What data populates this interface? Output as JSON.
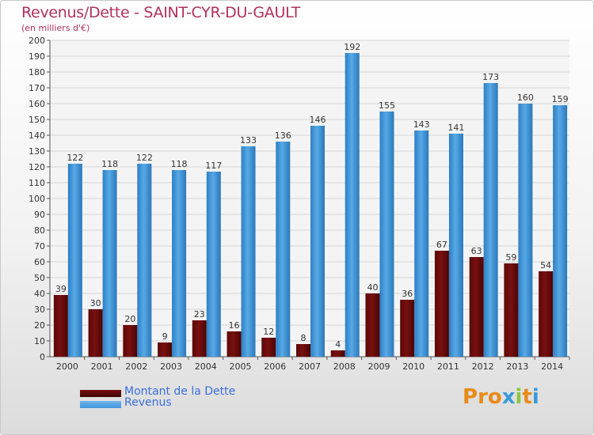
{
  "header": {
    "title": "Revenus/Dette - SAINT-CYR-DU-GAULT",
    "subtitle": "(en milliers d'€)"
  },
  "colors": {
    "dette": "#7a1010",
    "revenus": "#3f96da",
    "axis_text": "#333333",
    "legend_text": "#3a6fd8",
    "title_text": "#b03060"
  },
  "legend": {
    "dette_label": "Montant de la Dette",
    "revenus_label": "Revenus"
  },
  "logo": {
    "text": "Proxiti"
  },
  "chart_data": {
    "type": "bar",
    "title": "Revenus/Dette - SAINT-CYR-DU-GAULT",
    "subtitle": "(en milliers d'€)",
    "categories": [
      "2000",
      "2001",
      "2002",
      "2003",
      "2004",
      "2005",
      "2006",
      "2007",
      "2008",
      "2009",
      "2010",
      "2011",
      "2012",
      "2013",
      "2014"
    ],
    "series": [
      {
        "name": "Montant de la Dette",
        "values": [
          39,
          30,
          20,
          9,
          23,
          16,
          12,
          8,
          4,
          40,
          36,
          67,
          63,
          59,
          54
        ]
      },
      {
        "name": "Revenus",
        "values": [
          122,
          118,
          122,
          118,
          117,
          133,
          136,
          146,
          192,
          155,
          143,
          141,
          173,
          160,
          159
        ]
      }
    ],
    "ylim": [
      0,
      200
    ],
    "ytick_step": 10,
    "grid": true,
    "legend_position": "bottom-left"
  }
}
